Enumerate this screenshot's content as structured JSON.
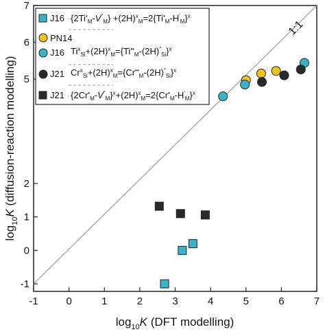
{
  "chart_data": {
    "type": "scatter",
    "title": "",
    "xlabel": "log10K (DFT modelling)",
    "ylabel": "log10K (diffusion-reaction modelling)",
    "x_label_parts": {
      "prefix": "log",
      "sub": "10",
      "var": "K",
      "suffix": " (DFT modelling)"
    },
    "y_label_parts": {
      "prefix": "log",
      "sub": "10",
      "var": "K",
      "suffix": " (diffusion-reaction modelling)"
    },
    "xlim": [
      -1,
      7
    ],
    "ylim_display": [
      -1.3,
      7
    ],
    "x_ticks": [
      "-1",
      "0",
      "1",
      "2",
      "3",
      "4",
      "5",
      "6",
      "7"
    ],
    "y_ticks_lower": [
      "-1",
      "0",
      "1",
      "2"
    ],
    "y_ticks_upper": [
      "5",
      "6",
      "7"
    ],
    "axis_break": "y-axis broken: lower segment -1 to 2, upper segment 4.8 to 7 (tick labels 5, 6, 7)",
    "reference_line": {
      "label": "1:1",
      "from": [
        -1,
        -1
      ],
      "to": [
        7,
        7
      ]
    },
    "grid": false,
    "legend_placement": "top-left",
    "series": [
      {
        "name": "J16 {2Ti·M–V″M}x + (2H)xM = 2{Ti·M–H′M}x",
        "marker": "square",
        "color": "#3ab3c7",
        "points": [
          [
            2.7,
            -1.0
          ],
          [
            3.2,
            0.0
          ],
          [
            3.5,
            0.2
          ]
        ]
      },
      {
        "name": "PN14",
        "marker": "circle",
        "color": "#f2c418",
        "points": [
          [
            5.0,
            4.97
          ],
          [
            5.43,
            5.15
          ],
          [
            5.85,
            5.22
          ]
        ]
      },
      {
        "name": "J16 TixSi + (2H)xM = {Ti··M–(2H)″Si}x",
        "marker": "circle",
        "color": "#3ab3c7",
        "points": [
          [
            4.35,
            4.53
          ],
          [
            4.97,
            4.85
          ],
          [
            6.65,
            5.44
          ]
        ]
      },
      {
        "name": "J21 CrxSi + (2H)xM = {Cr··M–(2H)″Si}x",
        "marker": "circle",
        "color": "#2a2a2a",
        "points": [
          [
            5.45,
            4.92
          ],
          [
            6.08,
            5.1
          ],
          [
            6.55,
            5.26
          ]
        ]
      },
      {
        "name": "J21 {2Cr·M–V″M}x + (2H)xM = 2{Cr·M–H′M}x",
        "marker": "square",
        "color": "#2a2a2a",
        "points": [
          [
            2.55,
            1.32
          ],
          [
            3.15,
            1.1
          ],
          [
            3.85,
            1.06
          ]
        ]
      }
    ]
  },
  "legend": {
    "entries": [
      {
        "tag": "J16",
        "eq": "{2Ti•M-V″M}x+(2H)xM=2{Ti•M-H′M}x"
      },
      {
        "tag": "PN14",
        "eq": ""
      },
      {
        "tag": "J16",
        "eq": "TixSi+(2H)xM={Ti••M-(2H)″Si}x"
      },
      {
        "tag": "J21",
        "eq": "CrxSi+(2H)xM={Cr••M-(2H)″Si}x"
      },
      {
        "tag": "J21",
        "eq": "{2Cr•M-V″M}x+(2H)xM=2{Cr•M-H′M}x"
      }
    ]
  },
  "colors": {
    "teal": "#3ab3c7",
    "gold": "#f2c418",
    "dark": "#2a2a2a",
    "line": "#9a9a9a"
  }
}
